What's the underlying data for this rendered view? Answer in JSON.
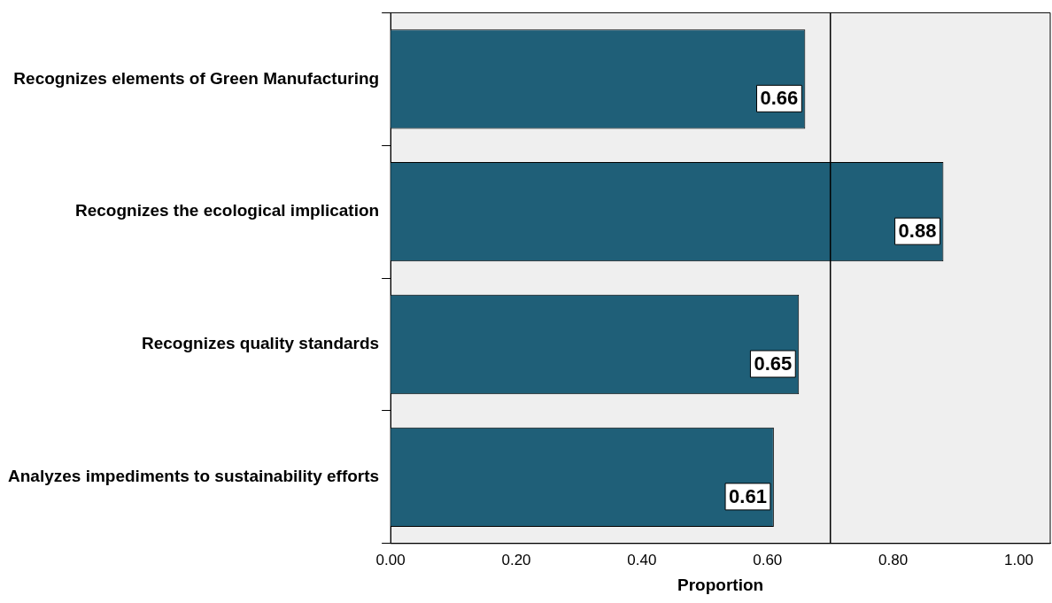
{
  "chart_data": {
    "type": "bar",
    "orientation": "horizontal",
    "xlabel": "Proportion",
    "categories": [
      "Recognizes elements of Green Manufacturing",
      "Recognizes the ecological implication",
      "Recognizes quality standards",
      "Analyzes impediments to sustainability efforts"
    ],
    "values": [
      0.66,
      0.88,
      0.65,
      0.61
    ],
    "color": "#1f5f78",
    "data_labels": true,
    "xlim": [
      0,
      1.05
    ],
    "xticks": [
      {
        "value": 0,
        "label": "0.00"
      },
      {
        "value": 0.2,
        "label": "0.20"
      },
      {
        "value": 0.4,
        "label": "0.40"
      },
      {
        "value": 0.6,
        "label": "0.60"
      },
      {
        "value": 0.8,
        "label": "0.80"
      },
      {
        "value": 1,
        "label": "1.00"
      }
    ],
    "ref_lines": [
      {
        "axis": "x",
        "value": 0.7,
        "color": "#000000"
      }
    ]
  }
}
